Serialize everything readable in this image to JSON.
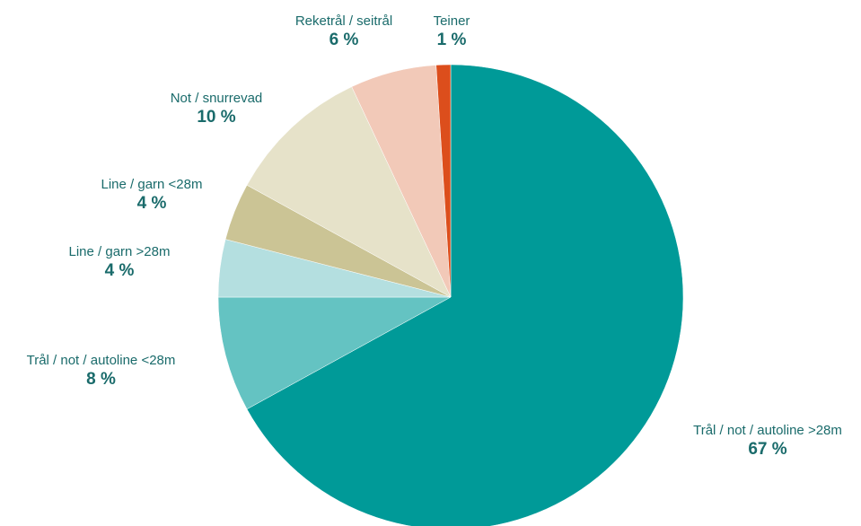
{
  "chart_data": {
    "type": "pie",
    "title": "",
    "start_angle_deg": 0,
    "direction": "clockwise",
    "slices": [
      {
        "label": "Trål / not / autoline >28m",
        "value": 67,
        "display": "67 %",
        "color": "#009a98"
      },
      {
        "label": "Trål / not / autoline <28m",
        "value": 8,
        "display": "8 %",
        "color": "#64c3c2"
      },
      {
        "label": "Line / garn >28m",
        "value": 4,
        "display": "4 %",
        "color": "#b4dfe0"
      },
      {
        "label": "Line / garn <28m",
        "value": 4,
        "display": "4 %",
        "color": "#cbc495"
      },
      {
        "label": "Not / snurrevad",
        "value": 10,
        "display": "10 %",
        "color": "#e6e2c9"
      },
      {
        "label": "Reketrål / seitrål",
        "value": 6,
        "display": "6 %",
        "color": "#f2c9b8"
      },
      {
        "label": "Teiner",
        "value": 1,
        "display": "1 %",
        "color": "#dc4e1c"
      }
    ],
    "label_color": "#1a6b6b",
    "legend": "none"
  }
}
